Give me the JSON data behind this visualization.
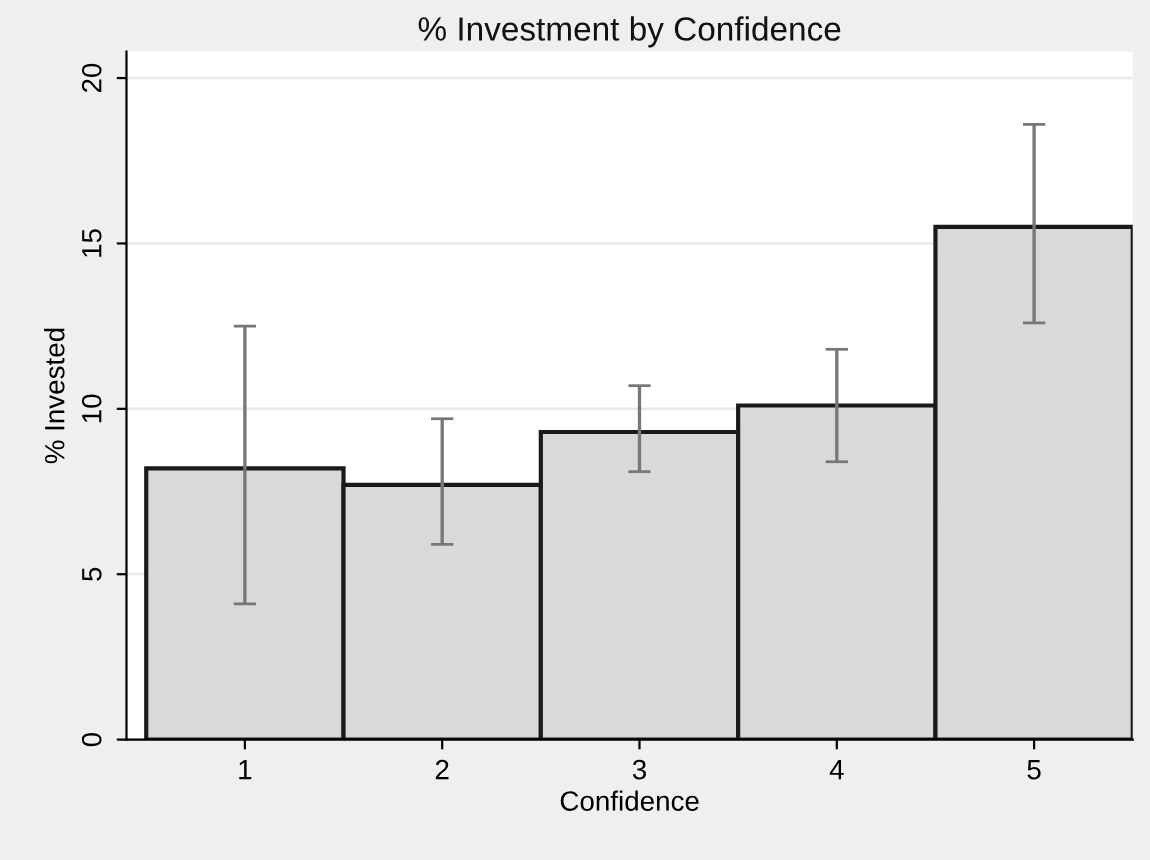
{
  "chart_data": {
    "type": "bar",
    "title": "% Investment by Confidence",
    "xlabel": "Confidence",
    "ylabel": "% Invested",
    "categories": [
      "1",
      "2",
      "3",
      "4",
      "5"
    ],
    "values": [
      8.2,
      7.7,
      9.3,
      10.1,
      15.5
    ],
    "errors": [
      [
        4.1,
        12.5
      ],
      [
        5.9,
        9.7
      ],
      [
        8.1,
        10.7
      ],
      [
        8.4,
        11.8
      ],
      [
        12.6,
        18.6
      ]
    ],
    "color": "#d9d9d9",
    "ylim": [
      0,
      20.8
    ],
    "yticks": [
      0,
      5,
      10,
      15,
      20
    ],
    "grid": "y"
  }
}
